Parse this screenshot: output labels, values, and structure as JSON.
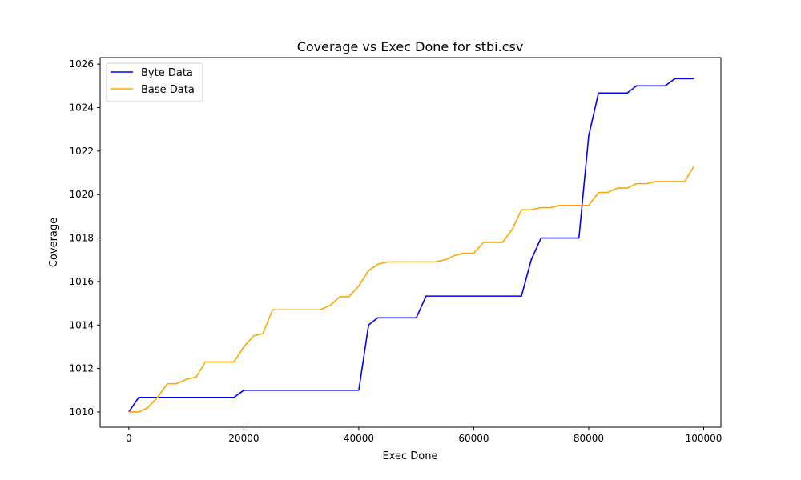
{
  "chart_data": {
    "type": "line",
    "title": "Coverage vs Exec Done for stbi.csv",
    "xlabel": "Exec Done",
    "ylabel": "Coverage",
    "xlim": [
      -5000,
      103000
    ],
    "ylim": [
      1009.3,
      1026.3
    ],
    "xticks": [
      0,
      20000,
      40000,
      60000,
      80000,
      100000
    ],
    "yticks": [
      1010,
      1012,
      1014,
      1016,
      1018,
      1020,
      1022,
      1024,
      1026
    ],
    "grid": false,
    "legend_position": "top-left",
    "series": [
      {
        "name": "Byte Data",
        "color": "#0000ff",
        "points": [
          [
            0,
            1010.0
          ],
          [
            1700,
            1010.67
          ],
          [
            18300,
            1010.67
          ],
          [
            20000,
            1011.0
          ],
          [
            40000,
            1011.0
          ],
          [
            41700,
            1014.0
          ],
          [
            43300,
            1014.33
          ],
          [
            50000,
            1014.33
          ],
          [
            51700,
            1015.33
          ],
          [
            68300,
            1015.33
          ],
          [
            70000,
            1017.0
          ],
          [
            71700,
            1018.0
          ],
          [
            78300,
            1018.0
          ],
          [
            80000,
            1022.7
          ],
          [
            81700,
            1024.67
          ],
          [
            86700,
            1024.67
          ],
          [
            88300,
            1025.0
          ],
          [
            93300,
            1025.0
          ],
          [
            95000,
            1025.33
          ],
          [
            98300,
            1025.33
          ]
        ]
      },
      {
        "name": "Base Data",
        "color": "#ffa500",
        "points": [
          [
            0,
            1010.0
          ],
          [
            1700,
            1010.0
          ],
          [
            3300,
            1010.2
          ],
          [
            5000,
            1010.67
          ],
          [
            6700,
            1011.3
          ],
          [
            8300,
            1011.3
          ],
          [
            10000,
            1011.5
          ],
          [
            11700,
            1011.6
          ],
          [
            13300,
            1012.3
          ],
          [
            18300,
            1012.3
          ],
          [
            20000,
            1013.0
          ],
          [
            21700,
            1013.5
          ],
          [
            23300,
            1013.6
          ],
          [
            25000,
            1014.7
          ],
          [
            33300,
            1014.7
          ],
          [
            35000,
            1014.9
          ],
          [
            36700,
            1015.3
          ],
          [
            38300,
            1015.3
          ],
          [
            40000,
            1015.8
          ],
          [
            41700,
            1016.5
          ],
          [
            43300,
            1016.8
          ],
          [
            45000,
            1016.9
          ],
          [
            53300,
            1016.9
          ],
          [
            55000,
            1017.0
          ],
          [
            56700,
            1017.2
          ],
          [
            58300,
            1017.3
          ],
          [
            60000,
            1017.3
          ],
          [
            61700,
            1017.8
          ],
          [
            65000,
            1017.8
          ],
          [
            66700,
            1018.4
          ],
          [
            68300,
            1019.3
          ],
          [
            70000,
            1019.3
          ],
          [
            71700,
            1019.4
          ],
          [
            73300,
            1019.4
          ],
          [
            75000,
            1019.5
          ],
          [
            80000,
            1019.5
          ],
          [
            81700,
            1020.1
          ],
          [
            83300,
            1020.1
          ],
          [
            85000,
            1020.3
          ],
          [
            86700,
            1020.3
          ],
          [
            88300,
            1020.5
          ],
          [
            90000,
            1020.5
          ],
          [
            91700,
            1020.6
          ],
          [
            96700,
            1020.6
          ],
          [
            98300,
            1021.3
          ]
        ]
      }
    ]
  }
}
